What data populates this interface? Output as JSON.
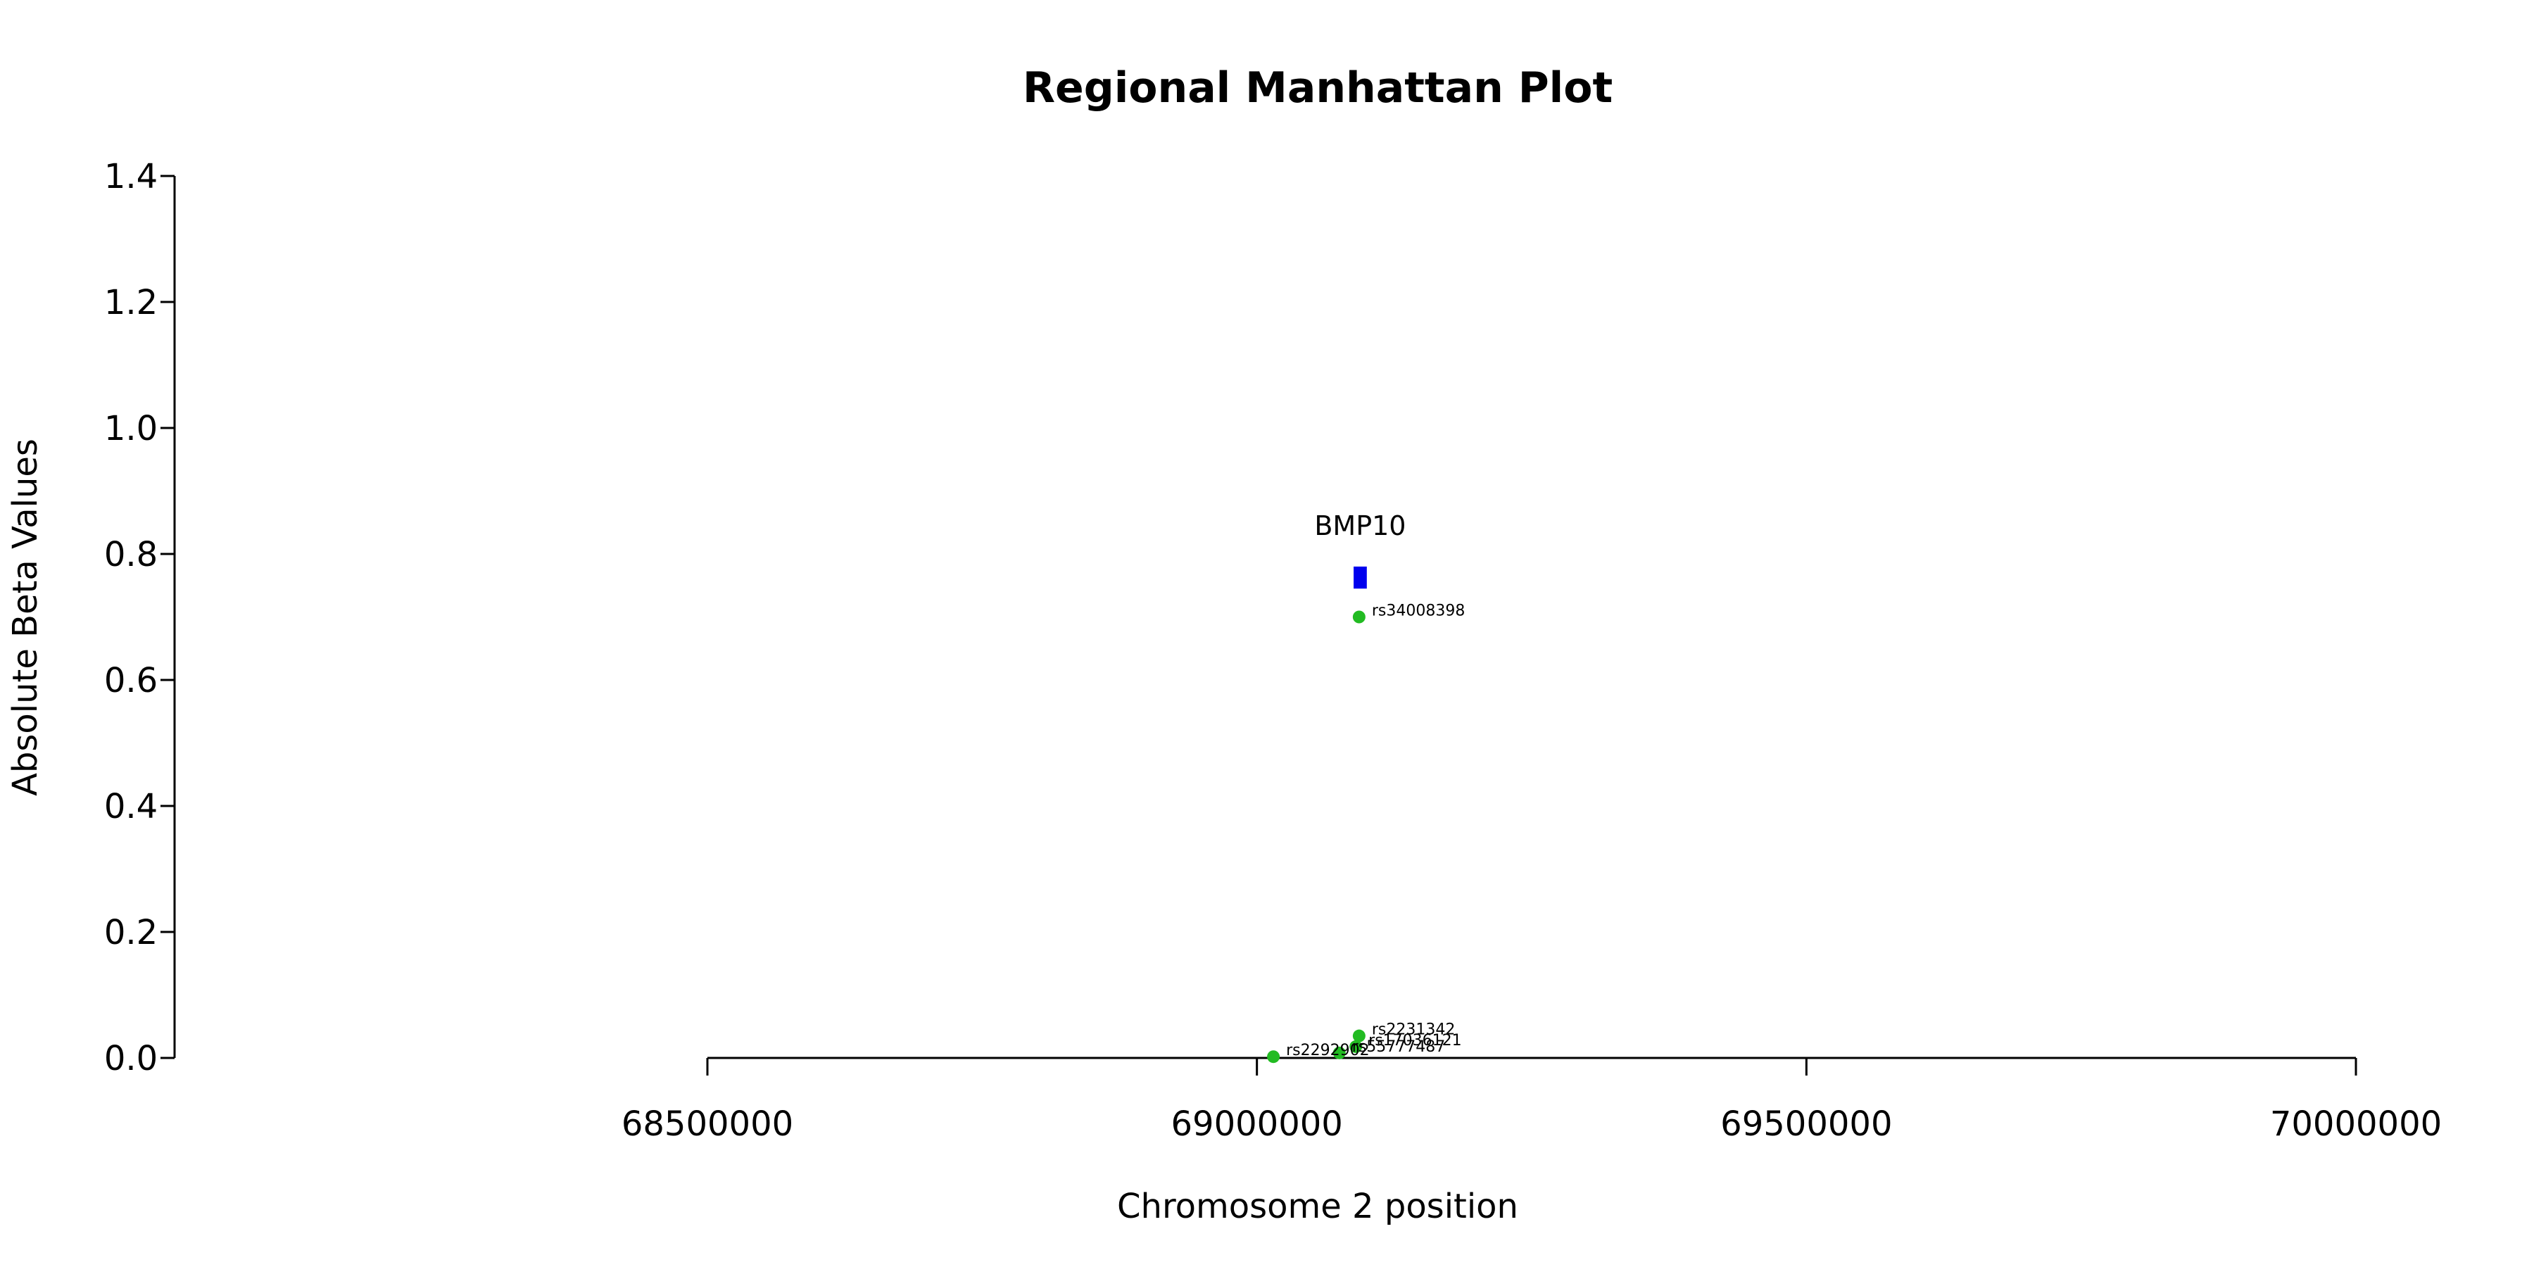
{
  "chart_data": {
    "type": "scatter",
    "title": "Regional Manhattan Plot",
    "xlabel": "Chromosome 2 position",
    "ylabel": "Absolute Beta Values",
    "xlim": [
      68500000,
      70000000
    ],
    "ylim": [
      0,
      1.4
    ],
    "x_ticks": [
      68500000,
      69000000,
      69500000,
      70000000
    ],
    "x_tick_labels": [
      "68500000",
      "69000000",
      "69500000",
      "70000000"
    ],
    "y_ticks": [
      0,
      0.2,
      0.4,
      0.6,
      0.8,
      1.0,
      1.2,
      1.4
    ],
    "y_tick_labels": [
      "0.0",
      "0.2",
      "0.4",
      "0.6",
      "0.8",
      "1.0",
      "1.2",
      "1.4"
    ],
    "grid": false,
    "point_color": "#22bb22",
    "gene_color": "#0000ee",
    "points": [
      {
        "x": 69093000,
        "y": 0.7,
        "label": "rs34008398"
      },
      {
        "x": 69093000,
        "y": 0.035,
        "label": "rs2231342"
      },
      {
        "x": 69090000,
        "y": 0.018,
        "label": "rs17036121"
      },
      {
        "x": 69075000,
        "y": 0.008,
        "label": "rs55777487"
      },
      {
        "x": 69015000,
        "y": 0.002,
        "label": "rs2292902"
      }
    ],
    "genes": [
      {
        "name": "BMP10",
        "start": 69088000,
        "end": 69100000,
        "y_low": 0.745,
        "y_high": 0.78
      }
    ]
  }
}
